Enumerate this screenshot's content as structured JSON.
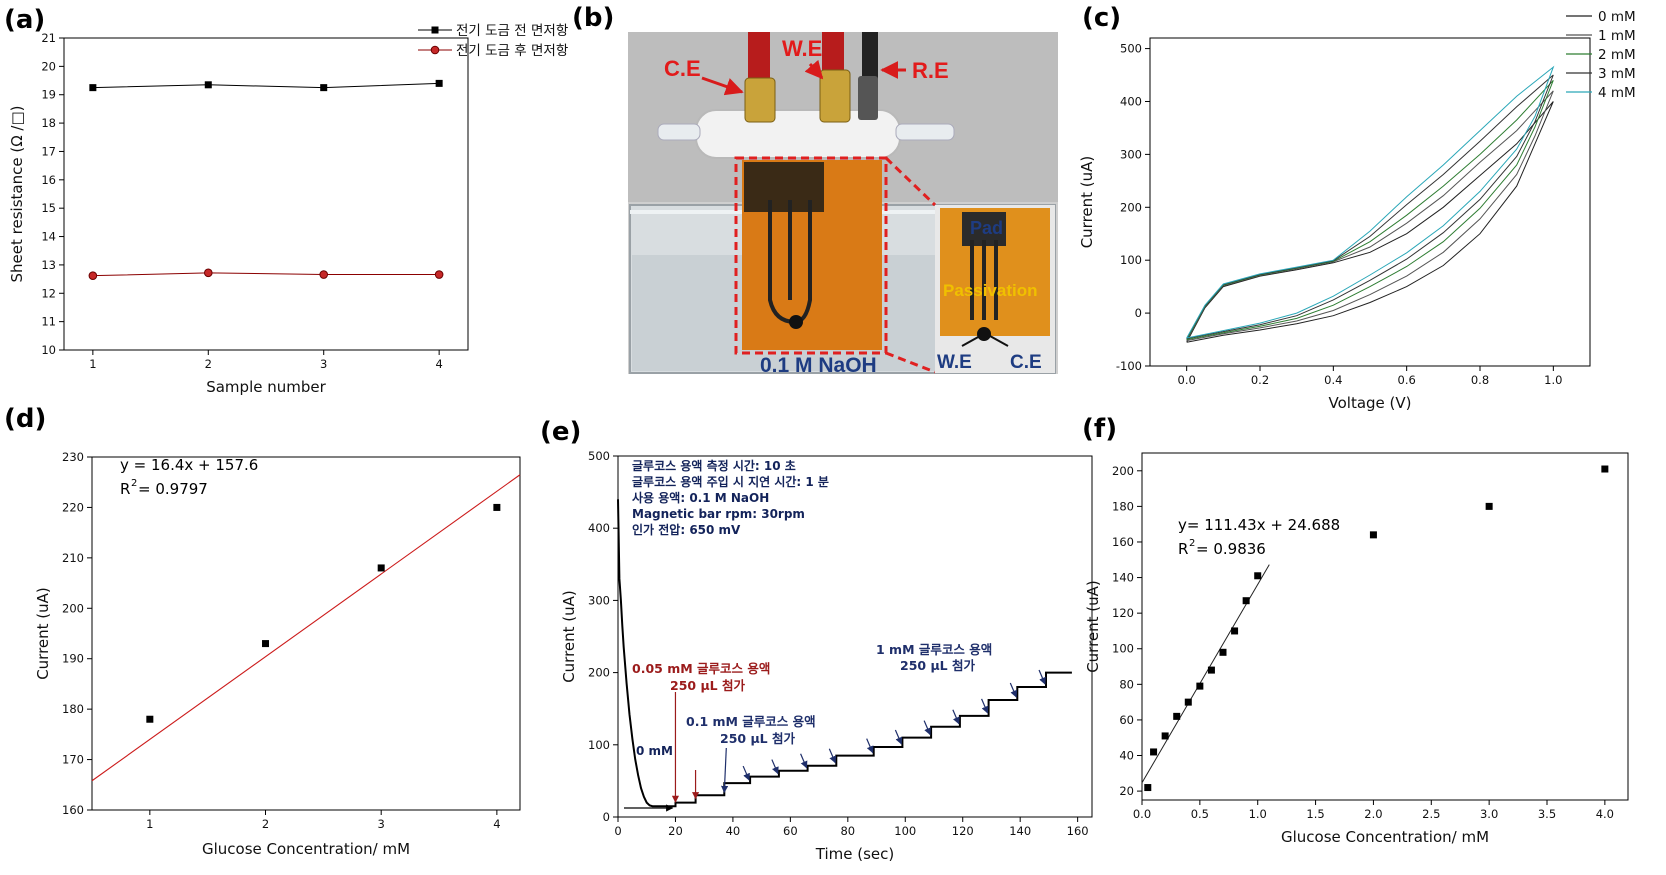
{
  "figure": {
    "panel_labels": [
      "(a)",
      "(b)",
      "(c)",
      "(d)",
      "(e)",
      "(f)"
    ]
  },
  "chart_data": [
    {
      "id": "a",
      "type": "line",
      "xlabel": "Sample number",
      "ylabel": "Sheet resistance (Ω /□)",
      "x": [
        1,
        2,
        3,
        4
      ],
      "xlim": [
        0.75,
        4.25
      ],
      "ylim": [
        10,
        21
      ],
      "xticks": [
        1,
        2,
        3,
        4
      ],
      "yticks": [
        10,
        11,
        12,
        13,
        14,
        15,
        16,
        17,
        18,
        19,
        20,
        21
      ],
      "legend": "top-right",
      "series": [
        {
          "name": "전기 도금 전 면저항",
          "values": [
            19.25,
            19.35,
            19.25,
            19.4
          ],
          "color": "#000000",
          "marker": "square"
        },
        {
          "name": "전기 도금 후 면저항",
          "values": [
            12.62,
            12.72,
            12.66,
            12.66
          ],
          "color": "#8b0000",
          "marker": "circle"
        }
      ]
    },
    {
      "id": "b",
      "type": "photo",
      "labels": {
        "ce": "C.E",
        "we": "W.E",
        "re": "R.E",
        "naoh": "0.1 M NaOH",
        "pad": "Pad",
        "passivation": "Passivation",
        "inset_we": "W.E",
        "inset_ce": "C.E"
      }
    },
    {
      "id": "c",
      "type": "line",
      "xlabel": "Voltage (V)",
      "ylabel": "Current (uA)",
      "xlim": [
        -0.1,
        1.1
      ],
      "ylim": [
        -100,
        520
      ],
      "xticks": [
        0.0,
        0.2,
        0.4,
        0.6,
        0.8,
        1.0
      ],
      "xtick_labels": [
        "0.0",
        "0.2",
        "0.4",
        "0.6",
        "0.8",
        "1.0"
      ],
      "yticks": [
        -100,
        0,
        100,
        200,
        300,
        400,
        500
      ],
      "legend": "top-right",
      "series": [
        {
          "name": "0 mM",
          "color": "#222222",
          "peak": 400,
          "forward": [
            [
              0,
              -55
            ],
            [
              0.05,
              10
            ],
            [
              0.1,
              50
            ],
            [
              0.2,
              70
            ],
            [
              0.3,
              82
            ],
            [
              0.4,
              95
            ],
            [
              0.5,
              115
            ],
            [
              0.6,
              150
            ],
            [
              0.7,
              200
            ],
            [
              0.8,
              260
            ],
            [
              0.9,
              320
            ],
            [
              1.0,
              400
            ]
          ],
          "reverse": [
            [
              1.0,
              400
            ],
            [
              0.95,
              320
            ],
            [
              0.9,
              240
            ],
            [
              0.8,
              150
            ],
            [
              0.7,
              90
            ],
            [
              0.6,
              50
            ],
            [
              0.5,
              20
            ],
            [
              0.4,
              -5
            ],
            [
              0.3,
              -20
            ],
            [
              0.2,
              -32
            ],
            [
              0.1,
              -42
            ],
            [
              0,
              -55
            ]
          ]
        },
        {
          "name": "1 mM",
          "color": "#555555",
          "peak": 420,
          "forward": [
            [
              0,
              -52
            ],
            [
              0.05,
              12
            ],
            [
              0.1,
              52
            ],
            [
              0.2,
              71
            ],
            [
              0.3,
              84
            ],
            [
              0.4,
              97
            ],
            [
              0.5,
              125
            ],
            [
              0.6,
              170
            ],
            [
              0.7,
              222
            ],
            [
              0.8,
              285
            ],
            [
              0.9,
              345
            ],
            [
              1.0,
              420
            ]
          ],
          "reverse": [
            [
              1.0,
              420
            ],
            [
              0.95,
              335
            ],
            [
              0.9,
              262
            ],
            [
              0.8,
              178
            ],
            [
              0.7,
              115
            ],
            [
              0.6,
              70
            ],
            [
              0.5,
              35
            ],
            [
              0.4,
              5
            ],
            [
              0.3,
              -15
            ],
            [
              0.2,
              -28
            ],
            [
              0.1,
              -39
            ],
            [
              0,
              -52
            ]
          ]
        },
        {
          "name": "2 mM",
          "color": "#2e7d32",
          "peak": 440,
          "forward": [
            [
              0,
              -50
            ],
            [
              0.05,
              13
            ],
            [
              0.1,
              53
            ],
            [
              0.2,
              72
            ],
            [
              0.3,
              85
            ],
            [
              0.4,
              98
            ],
            [
              0.5,
              135
            ],
            [
              0.6,
              185
            ],
            [
              0.7,
              240
            ],
            [
              0.8,
              300
            ],
            [
              0.9,
              365
            ],
            [
              1.0,
              440
            ]
          ],
          "reverse": [
            [
              1.0,
              440
            ],
            [
              0.95,
              352
            ],
            [
              0.9,
              280
            ],
            [
              0.8,
              198
            ],
            [
              0.7,
              135
            ],
            [
              0.6,
              88
            ],
            [
              0.5,
              50
            ],
            [
              0.4,
              15
            ],
            [
              0.3,
              -10
            ],
            [
              0.2,
              -25
            ],
            [
              0.1,
              -37
            ],
            [
              0,
              -50
            ]
          ]
        },
        {
          "name": "3 mM",
          "color": "#333333",
          "peak": 450,
          "forward": [
            [
              0,
              -48
            ],
            [
              0.05,
              14
            ],
            [
              0.1,
              54
            ],
            [
              0.2,
              73
            ],
            [
              0.3,
              86
            ],
            [
              0.4,
              99
            ],
            [
              0.5,
              145
            ],
            [
              0.6,
              205
            ],
            [
              0.7,
              262
            ],
            [
              0.8,
              325
            ],
            [
              0.9,
              390
            ],
            [
              1.0,
              450
            ]
          ],
          "reverse": [
            [
              1.0,
              450
            ],
            [
              0.95,
              362
            ],
            [
              0.9,
              296
            ],
            [
              0.8,
              215
            ],
            [
              0.7,
              152
            ],
            [
              0.6,
              102
            ],
            [
              0.5,
              62
            ],
            [
              0.4,
              25
            ],
            [
              0.3,
              -5
            ],
            [
              0.2,
              -22
            ],
            [
              0.1,
              -35
            ],
            [
              0,
              -48
            ]
          ]
        },
        {
          "name": "4 mM",
          "color": "#2aa7b8",
          "peak": 465,
          "forward": [
            [
              0,
              -47
            ],
            [
              0.05,
              15
            ],
            [
              0.1,
              55
            ],
            [
              0.2,
              74
            ],
            [
              0.3,
              87
            ],
            [
              0.4,
              100
            ],
            [
              0.5,
              155
            ],
            [
              0.6,
              220
            ],
            [
              0.7,
              280
            ],
            [
              0.8,
              345
            ],
            [
              0.9,
              410
            ],
            [
              1.0,
              465
            ]
          ],
          "reverse": [
            [
              1.0,
              465
            ],
            [
              0.95,
              372
            ],
            [
              0.9,
              310
            ],
            [
              0.8,
              230
            ],
            [
              0.7,
              165
            ],
            [
              0.6,
              114
            ],
            [
              0.5,
              72
            ],
            [
              0.4,
              32
            ],
            [
              0.3,
              0
            ],
            [
              0.2,
              -19
            ],
            [
              0.1,
              -33
            ],
            [
              0,
              -47
            ]
          ]
        }
      ]
    },
    {
      "id": "d",
      "type": "scatter",
      "xlabel": "Glucose Concentration/ mM",
      "ylabel": "Current (uA)",
      "xlim": [
        0.5,
        4.2
      ],
      "ylim": [
        160,
        230
      ],
      "xticks": [
        1,
        2,
        3,
        4
      ],
      "yticks": [
        160,
        170,
        180,
        190,
        200,
        210,
        220,
        230
      ],
      "x": [
        1,
        2,
        3,
        4
      ],
      "y": [
        178,
        193,
        208,
        220
      ],
      "fit": {
        "slope": 16.4,
        "intercept": 157.6,
        "x_range": [
          0.5,
          4.2
        ],
        "color": "#cc1b1b"
      },
      "equation": "y = 16.4x + 157.6",
      "r_squared_label": "R",
      "r_squared_sup": "2",
      "r_squared_value": "= 0.9797"
    },
    {
      "id": "e",
      "type": "line",
      "xlabel": "Time (sec)",
      "ylabel": "Current (uA)",
      "xlim": [
        0,
        165
      ],
      "ylim": [
        0,
        500
      ],
      "xticks": [
        0,
        20,
        40,
        60,
        80,
        100,
        120,
        140,
        160
      ],
      "yticks": [
        0,
        100,
        200,
        300,
        400,
        500
      ],
      "series": [
        {
          "name": "",
          "color": "#000000",
          "points": [
            [
              0,
              440
            ],
            [
              0.5,
              330
            ],
            [
              1,
              300
            ],
            [
              1.5,
              265
            ],
            [
              2,
              235
            ],
            [
              3,
              185
            ],
            [
              4,
              142
            ],
            [
              5,
              108
            ],
            [
              6,
              80
            ],
            [
              7,
              58
            ],
            [
              8,
              40
            ],
            [
              9,
              28
            ],
            [
              10,
              20
            ],
            [
              11,
              16
            ],
            [
              12,
              15
            ],
            [
              20,
              15
            ],
            [
              20,
              20
            ],
            [
              27,
              20
            ],
            [
              27,
              30
            ],
            [
              37,
              30
            ],
            [
              37,
              47
            ],
            [
              46,
              47
            ],
            [
              46,
              56
            ],
            [
              56,
              56
            ],
            [
              56,
              64
            ],
            [
              66,
              64
            ],
            [
              66,
              71
            ],
            [
              76,
              71
            ],
            [
              76,
              85
            ],
            [
              89,
              85
            ],
            [
              89,
              97
            ],
            [
              99,
              97
            ],
            [
              99,
              110
            ],
            [
              109,
              110
            ],
            [
              109,
              125
            ],
            [
              119,
              125
            ],
            [
              119,
              140
            ],
            [
              129,
              140
            ],
            [
              129,
              162
            ],
            [
              139,
              162
            ],
            [
              139,
              180
            ],
            [
              149,
              180
            ],
            [
              149,
              200
            ],
            [
              158,
              200
            ]
          ]
        }
      ],
      "arrows_dark_red": [
        20,
        27
      ],
      "arrows_blue": [
        37,
        46,
        56,
        66,
        76,
        89,
        99,
        109,
        119,
        129,
        139,
        149
      ],
      "text_lines": [
        "글루코스 용액 측정 시간: 10 초",
        "글루코스 용액 주입 시 지연 시간: 1 분",
        "사용 용액: 0.1 M NaOH",
        "Magnetic bar rpm: 30rpm",
        "인가 전압: 650 mV"
      ],
      "annotations": {
        "zero": "0 mM",
        "a005_line1": "0.05 mM 글루코스 용액",
        "a005_line2": "250 μL 첨가",
        "a01_line1": "0.1 mM 글루코스 용액",
        "a01_line2": "250 μL 첨가",
        "a1_line1": "1 mM 글루코스 용액",
        "a1_line2": "250 μL 첨가"
      },
      "colors": {
        "dark_red": "#9b1b1b",
        "navy": "#1f2f6b"
      }
    },
    {
      "id": "f",
      "type": "scatter",
      "xlabel": "Glucose Concentration/ mM",
      "ylabel": "Current (uA)",
      "xlim": [
        0,
        4.2
      ],
      "ylim": [
        15,
        210
      ],
      "xticks": [
        0.0,
        0.5,
        1.0,
        1.5,
        2.0,
        2.5,
        3.0,
        3.5,
        4.0
      ],
      "xtick_labels": [
        "0.0",
        "0.5",
        "1.0",
        "1.5",
        "2.0",
        "2.5",
        "3.0",
        "3.5",
        "4.0"
      ],
      "yticks": [
        20,
        40,
        60,
        80,
        100,
        120,
        140,
        160,
        180,
        200
      ],
      "x": [
        0.05,
        0.1,
        0.2,
        0.3,
        0.4,
        0.5,
        0.6,
        0.7,
        0.8,
        0.9,
        1.0,
        2.0,
        3.0,
        4.0
      ],
      "y": [
        22,
        42,
        51,
        62,
        70,
        79,
        88,
        98,
        110,
        127,
        141,
        164,
        180,
        201
      ],
      "fit": {
        "slope": 111.43,
        "intercept": 24.688,
        "x_range": [
          0.0,
          1.1
        ],
        "color": "#222222"
      },
      "equation": "y= 111.43x + 24.688",
      "r_squared_label": "R",
      "r_squared_sup": "2",
      "r_squared_value": "= 0.9836"
    }
  ]
}
